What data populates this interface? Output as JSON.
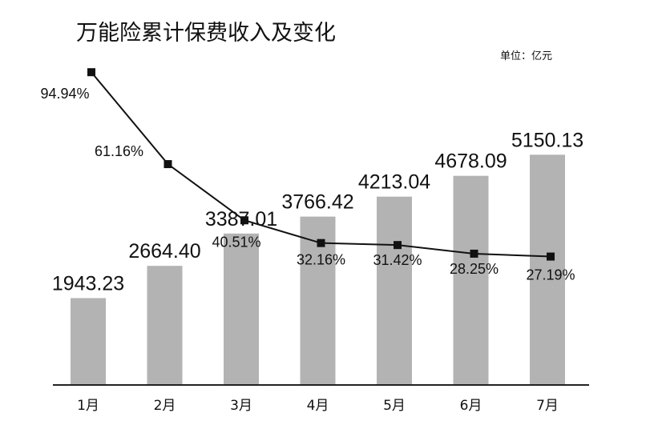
{
  "chart_data": {
    "type": "bar",
    "title": "万能险累计保费收入及变化",
    "unit_label": "单位：亿元",
    "categories": [
      "1月",
      "2月",
      "3月",
      "4月",
      "5月",
      "6月",
      "7月"
    ],
    "series": [
      {
        "type": "bar",
        "values": [
          1943.23,
          2664.4,
          3387.01,
          3766.42,
          4213.04,
          4678.09,
          5150.13
        ],
        "labels": [
          "1943.23",
          "2664.40",
          "3387.01",
          "3766.42",
          "4213.04",
          "4678.09",
          "5150.13"
        ]
      },
      {
        "type": "line",
        "values": [
          94.94,
          61.16,
          40.51,
          32.16,
          31.42,
          28.25,
          27.19
        ],
        "labels": [
          "94.94%",
          "61.16%",
          "40.51%",
          "32.16%",
          "31.42%",
          "28.25%",
          "27.19%"
        ]
      }
    ],
    "ylim_bar": [
      0,
      7000
    ],
    "ylim_line": [
      -20,
      95
    ],
    "grid": false,
    "legend": "none",
    "colors": {
      "bar": "#b3b3b3",
      "line": "#111111",
      "axis": "#222222",
      "text": "#111111"
    }
  }
}
